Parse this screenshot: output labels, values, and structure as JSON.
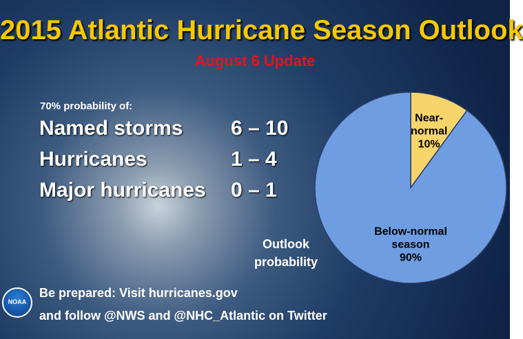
{
  "header": {
    "title": "2015 Atlantic Hurricane Season Outlook",
    "subtitle": "August 6 Update"
  },
  "forecast": {
    "note": "70% probability of:",
    "rows": [
      [
        "Named storms",
        "6 – 10"
      ],
      [
        "Hurricanes",
        "1 – 4"
      ],
      [
        "Major hurricanes",
        "0 – 1"
      ]
    ]
  },
  "chart_data": {
    "type": "pie",
    "caption": "Outlook probability",
    "categories": [
      "Near-normal",
      "Below-normal season"
    ],
    "values": [
      10,
      90
    ],
    "value_labels": [
      "10%",
      "90%"
    ],
    "colors": [
      "#f8d56a",
      "#6e9de2"
    ]
  },
  "footer": {
    "lines": [
      "Be prepared: Visit hurricanes.gov",
      "and follow @NWS and @NHC_Atlantic on Twitter"
    ],
    "logo": "NOAA"
  }
}
